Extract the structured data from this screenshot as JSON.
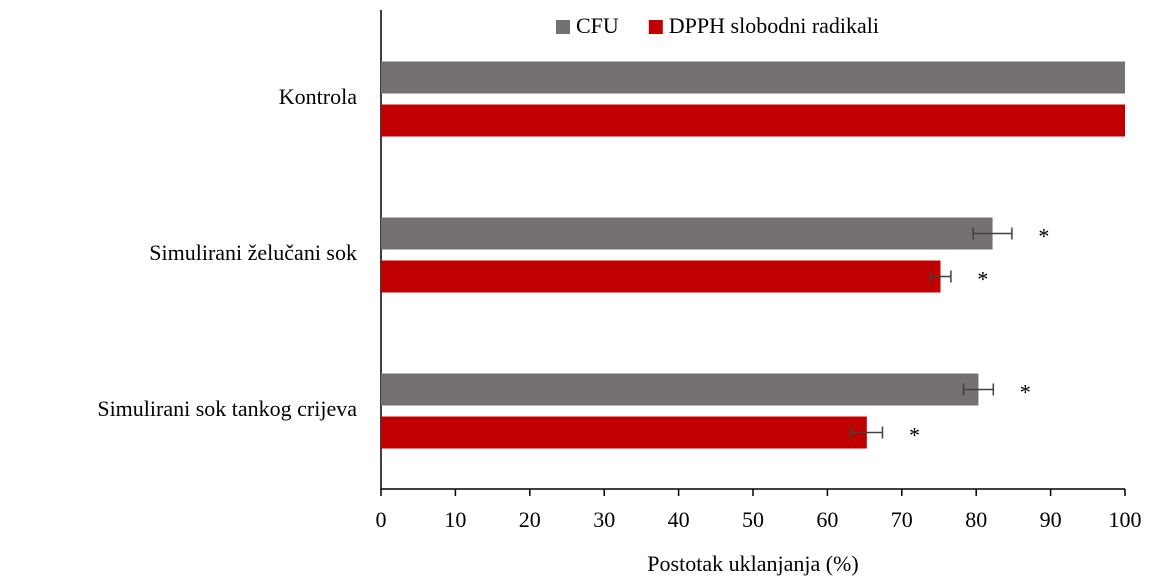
{
  "chart_data": {
    "type": "hbar",
    "xlabel": "Postotak uklanjanja (%)",
    "categories": [
      "Kontrola",
      "Simulirani želučani sok",
      "Simulirani sok tankog crijeva"
    ],
    "series": [
      {
        "name": "CFU",
        "color": "#767171",
        "values": [
          100,
          82.2,
          80.3
        ],
        "errors": [
          null,
          2.6,
          2.0
        ],
        "markers": [
          null,
          "*",
          "*"
        ]
      },
      {
        "name": "DPPH slobodni radikali",
        "color": "#c00000",
        "values": [
          100,
          75.2,
          65.3
        ],
        "errors": [
          null,
          1.4,
          2.1
        ],
        "markers": [
          null,
          "*",
          "*"
        ]
      }
    ],
    "xlim": [
      0,
      100
    ],
    "xticks": [
      0,
      10,
      20,
      30,
      40,
      50,
      60,
      70,
      80,
      90,
      100
    ],
    "grid": false,
    "legend": "top"
  }
}
